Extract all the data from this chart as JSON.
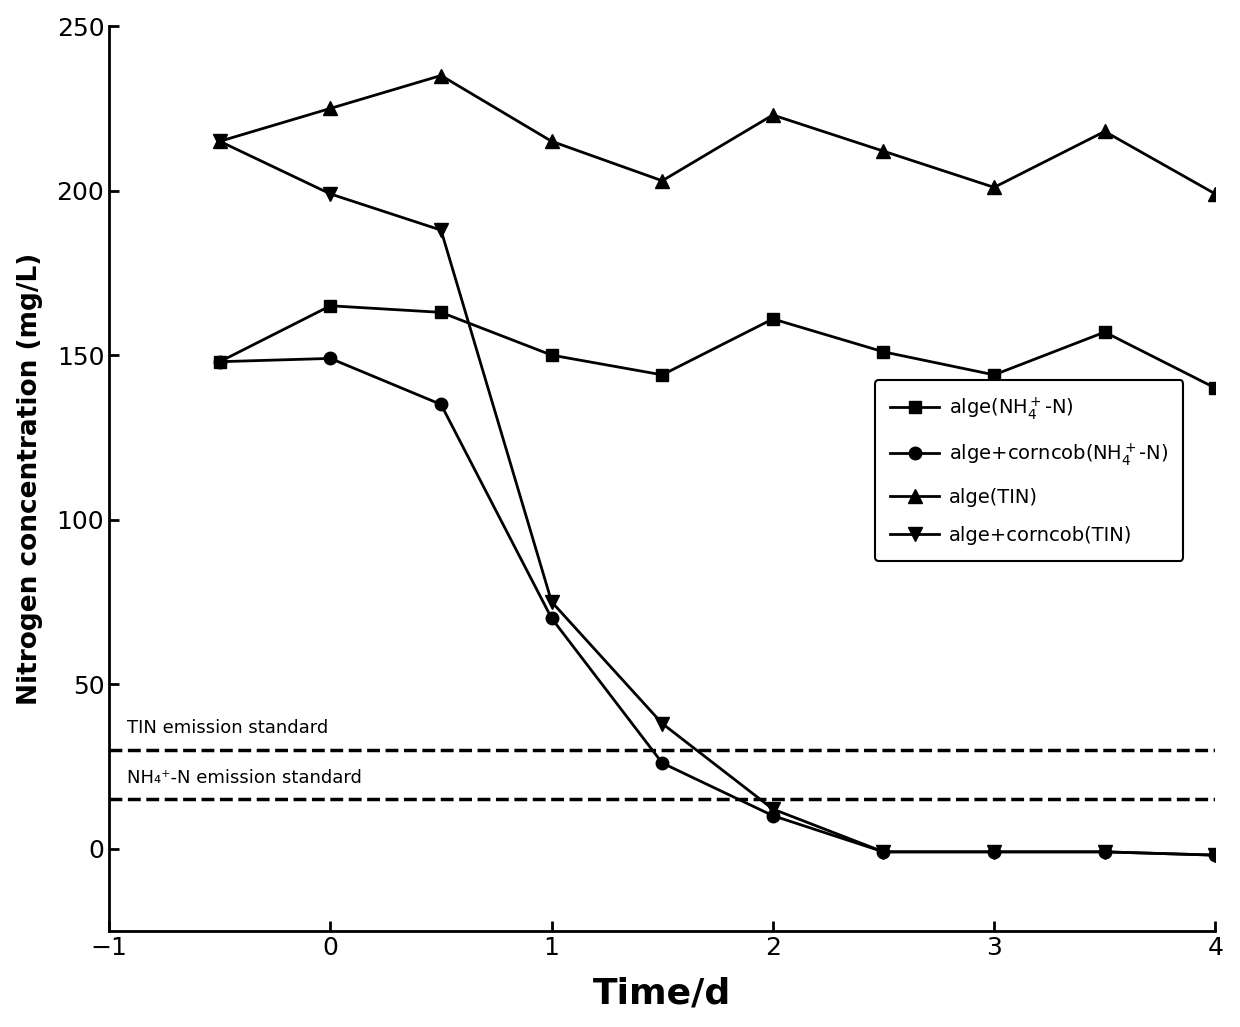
{
  "x_values": [
    -0.5,
    0,
    0.5,
    1,
    1.5,
    2,
    2.5,
    3,
    3.5,
    4
  ],
  "alge_NH4_N": [
    148,
    165,
    163,
    150,
    144,
    161,
    151,
    144,
    157,
    140
  ],
  "alge_corncob_NH4_N": [
    148,
    149,
    135,
    70,
    26,
    10,
    -1,
    -1,
    -1,
    -2
  ],
  "alge_TIN": [
    215,
    225,
    235,
    215,
    203,
    223,
    212,
    201,
    218,
    199
  ],
  "alge_corncob_TIN": [
    215,
    199,
    188,
    75,
    38,
    12,
    -1,
    -1,
    -1,
    -2
  ],
  "TIN_standard": 30,
  "NH4_standard": 15,
  "xlim": [
    -1,
    4
  ],
  "ylim": [
    -25,
    250
  ],
  "xlabel": "Time/d",
  "ylabel": "Nitrogen concentration (mg/L)",
  "tin_label": "TIN emission standard",
  "nh4_label": "NH₄⁺-N emission standard",
  "xticks": [
    -1,
    0,
    1,
    2,
    3,
    4
  ],
  "yticks": [
    0,
    50,
    100,
    150,
    200,
    250
  ]
}
